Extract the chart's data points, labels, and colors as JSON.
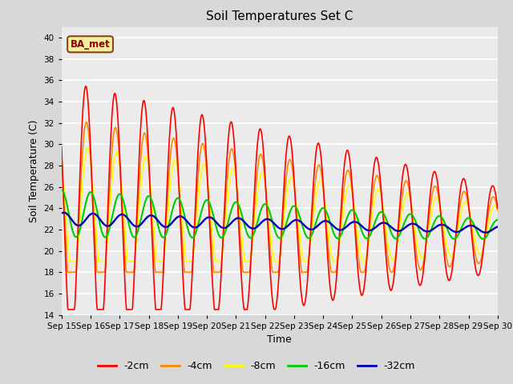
{
  "title": "Soil Temperatures Set C",
  "xlabel": "Time",
  "ylabel": "Soil Temperature (C)",
  "ylim": [
    14,
    41
  ],
  "yticks": [
    14,
    16,
    18,
    20,
    22,
    24,
    26,
    28,
    30,
    32,
    34,
    36,
    38,
    40
  ],
  "annotation": "BA_met",
  "colors": {
    "-2cm": "#ff0000",
    "-4cm": "#ff8800",
    "-8cm": "#ffff00",
    "-16cm": "#00cc00",
    "-32cm": "#0000bb"
  },
  "legend_labels": [
    "-2cm",
    "-4cm",
    "-8cm",
    "-16cm",
    "-32cm"
  ],
  "background_color": "#d8d8d8",
  "plot_bg_color": "#ebebeb",
  "grid_color": "#ffffff",
  "n_days": 15,
  "start_day": 15,
  "points_per_day": 48
}
